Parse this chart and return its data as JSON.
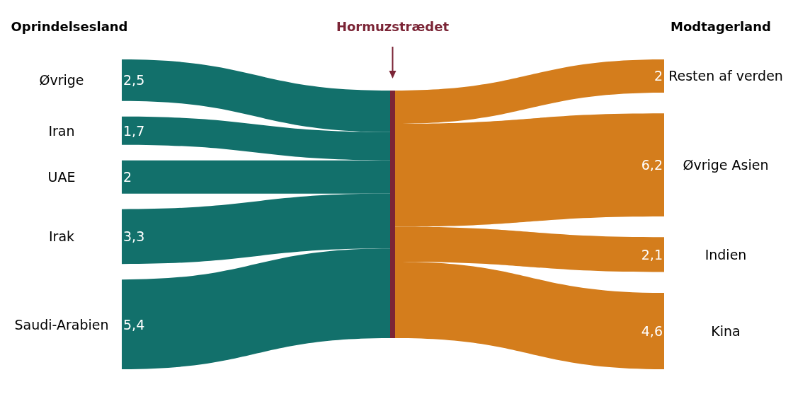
{
  "chart_data": {
    "type": "other",
    "title": "Hormuzstrædet",
    "categories": [
      "Øvrige",
      "Iran",
      "UAE",
      "Irak",
      "Saudi-Arabien",
      "Resten af verden",
      "Øvrige Asien",
      "Indien",
      "Kina"
    ],
    "series": [
      {
        "name": "Oprindelsesland",
        "color": "#12706b",
        "values": [
          2.5,
          1.7,
          2,
          3.3,
          5.4,
          null,
          null,
          null,
          null
        ],
        "value_labels": [
          "2,5",
          "1,7",
          "2",
          "3,3",
          "5,4",
          null,
          null,
          null,
          null
        ]
      },
      {
        "name": "Modtagerland",
        "color": "#d47d1c",
        "values": [
          null,
          null,
          null,
          null,
          null,
          2,
          6.2,
          2.1,
          4.6
        ],
        "value_labels": [
          null,
          null,
          null,
          null,
          null,
          "2",
          "6,2",
          "2,1",
          "4,6"
        ]
      }
    ]
  }
}
